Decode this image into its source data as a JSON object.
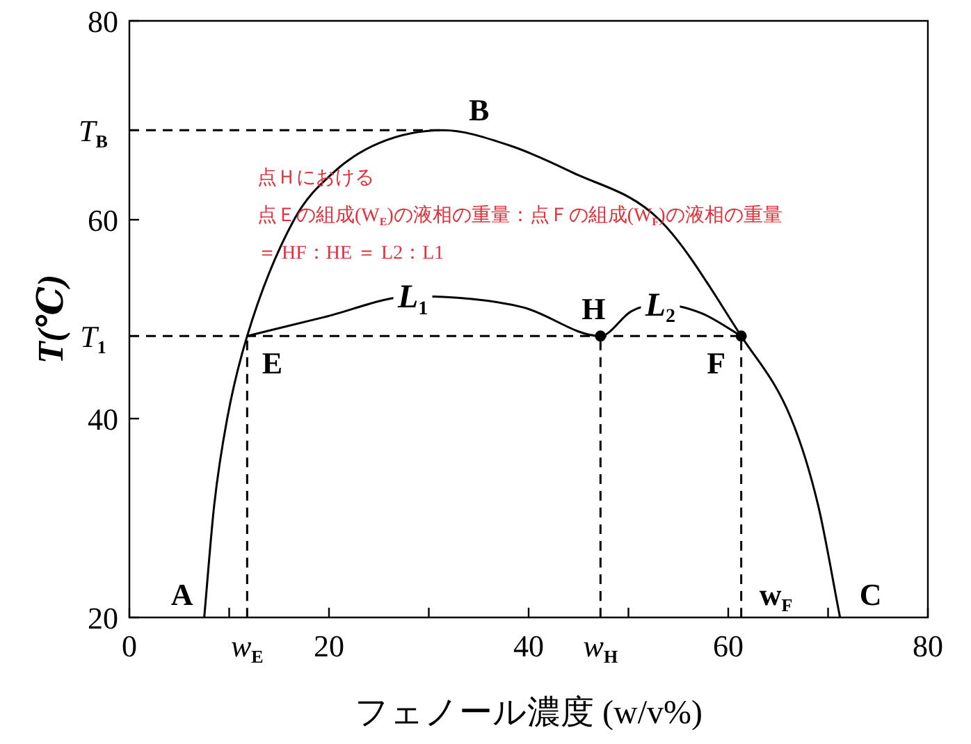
{
  "chart_data": {
    "type": "line",
    "xlabel": "フェノール濃度 (w/v%)",
    "ylabel": "T(℃)",
    "xlim": [
      0,
      80
    ],
    "ylim": [
      20,
      80
    ],
    "xticks": [
      0,
      {
        "value": 10,
        "label": null
      },
      {
        "value": 11.8,
        "label": "w$_{E}$"
      },
      20,
      {
        "value": 30,
        "label": null
      },
      40,
      {
        "value": 47.2,
        "label": "w$_{H}$"
      },
      {
        "value": 50,
        "label": null
      },
      60,
      {
        "value": 70,
        "label": null
      },
      80
    ],
    "yticks": [
      20,
      40,
      60,
      80
    ],
    "grid": false,
    "legend": false,
    "series": [
      {
        "type": "line",
        "color": "#000000",
        "line_style": "solid",
        "marker": "none",
        "x": [
          7.5,
          8.5,
          9.8,
          11.8,
          16.5,
          20.5,
          25,
          31.4,
          38,
          44.3,
          53.1,
          61.3,
          66.3,
          69,
          71.2
        ],
        "values": [
          20,
          31.3,
          40,
          48.3,
          60,
          64.8,
          67.7,
          69,
          67.5,
          64.8,
          60,
          48.3,
          40,
          31.3,
          20
        ]
      },
      {
        "type": "line",
        "color": "#000000",
        "line_style": "solid",
        "marker": "none",
        "x": [
          11.8,
          19.5,
          28.4,
          39.4,
          47.2,
          50.3,
          53.2,
          57.3,
          61.3
        ],
        "values": [
          48.3,
          50.2,
          52.3,
          51.2,
          48.3,
          50.8,
          51.5,
          50.6,
          48.3
        ]
      },
      {
        "type": "line",
        "color": "#000000",
        "line_style": "dashed",
        "marker": "none",
        "x": [
          0,
          31.4
        ],
        "values": [
          69,
          69
        ]
      },
      {
        "type": "line",
        "color": "#000000",
        "line_style": "dashed",
        "marker": "none",
        "x": [
          0,
          61.3
        ],
        "values": [
          48.3,
          48.3
        ]
      },
      {
        "type": "line",
        "color": "#000000",
        "line_style": "dashed",
        "marker": "none",
        "x": [
          11.8,
          11.8
        ],
        "values": [
          20,
          48.3
        ]
      },
      {
        "type": "line",
        "color": "#000000",
        "line_style": "dashed",
        "marker": "none",
        "x": [
          47.2,
          47.2
        ],
        "values": [
          20,
          48.3
        ]
      },
      {
        "type": "line",
        "color": "#000000",
        "line_style": "dashed",
        "marker": "none",
        "x": [
          61.3,
          61.3
        ],
        "values": [
          20,
          48.3
        ]
      },
      {
        "type": "scatter",
        "color": "#000000",
        "marker": "circle",
        "x": [
          47.2,
          61.3
        ],
        "values": [
          48.3,
          48.3
        ]
      }
    ],
    "annotations": [
      {
        "text": "A",
        "x": 7.5,
        "y": 20
      },
      {
        "text": "B",
        "x": 31.4,
        "y": 69
      },
      {
        "text": "C",
        "x": 71.2,
        "y": 20
      },
      {
        "text": "E",
        "x": 11.8,
        "y": 48.3
      },
      {
        "text": "F",
        "x": 61.3,
        "y": 48.3
      },
      {
        "text": "H",
        "x": 47.2,
        "y": 48.3
      },
      {
        "text": "L$_{1}$",
        "x": 28.4,
        "y": 52.3
      },
      {
        "text": "L$_{2}$",
        "x": 53.2,
        "y": 51.5
      },
      {
        "text": "w$_{F}$",
        "x": 61.3,
        "y": 20
      },
      {
        "text": "T$_{B}$",
        "x": 0,
        "y": 69
      },
      {
        "text": "T$_{1}$",
        "x": 0,
        "y": 48.3
      },
      "点Ｈにおける",
      "点Ｅの組成(W$_{E}$)の液相の重量：点Ｆの組成(W$_{F}$)の液相の重量",
      "＝ HF：HE ＝ L2：L1"
    ]
  }
}
